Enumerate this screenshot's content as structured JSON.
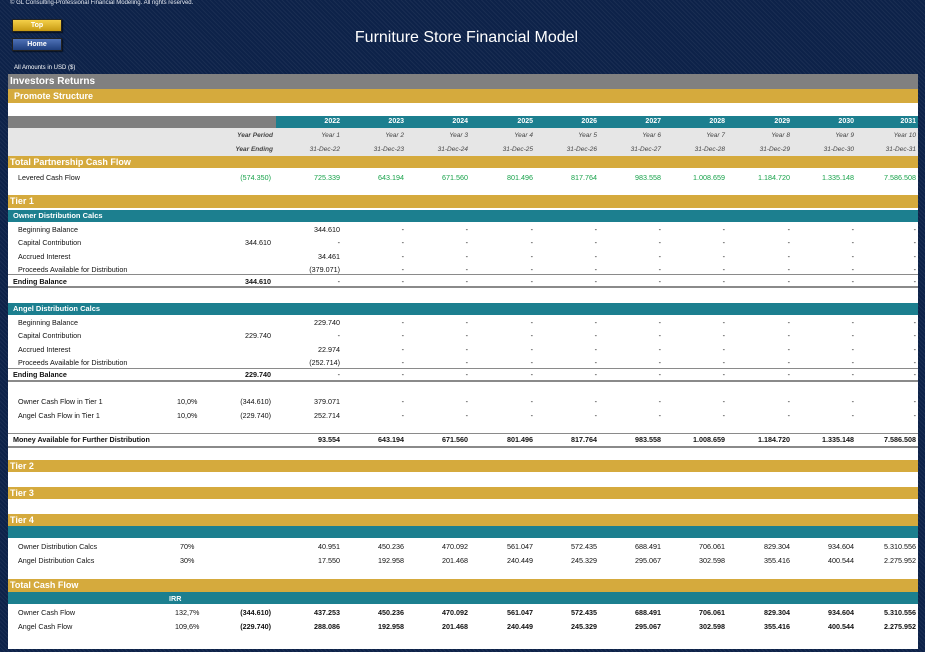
{
  "copyright": "© GL Consulting-Professional Financial Modeling. All rights reserved.",
  "nav": {
    "top": "Top",
    "home": "Home"
  },
  "title": "Furniture Store Financial Model",
  "amounts_label": "All Amounts in  USD ($)",
  "sections": {
    "investors_returns": "Investors Returns",
    "promote_structure": "Promote Structure",
    "total_partnership_cf": "Total Partnership Cash Flow",
    "tier1": "Tier 1",
    "owner_calcs": "Owner Distribution Calcs",
    "angel_calcs": "Angel Distribution Calcs",
    "tier2": "Tier 2",
    "tier3": "Tier 3",
    "tier4": "Tier 4",
    "total_cash_flow": "Total Cash Flow"
  },
  "header": {
    "years": [
      "2022",
      "2023",
      "2024",
      "2025",
      "2026",
      "2027",
      "2028",
      "2029",
      "2030",
      "2031"
    ],
    "year_period_label": "Year Period",
    "year_ending_label": "Year Ending",
    "periods": [
      "Year 1",
      "Year 2",
      "Year 3",
      "Year 4",
      "Year 5",
      "Year 6",
      "Year 7",
      "Year 8",
      "Year 9",
      "Year 10"
    ],
    "endings": [
      "31-Dec-22",
      "31-Dec-23",
      "31-Dec-24",
      "31-Dec-25",
      "31-Dec-26",
      "31-Dec-27",
      "31-Dec-28",
      "31-Dec-29",
      "31-Dec-30",
      "31-Dec-31"
    ]
  },
  "levered": {
    "label": "Levered Cash Flow",
    "initial": "(574.350)",
    "values": [
      "725.339",
      "643.194",
      "671.560",
      "801.496",
      "817.764",
      "983.558",
      "1.008.659",
      "1.184.720",
      "1.335.148",
      "7.586.508"
    ]
  },
  "owner": {
    "rows": [
      {
        "label": "Beginning Balance",
        "c2": "",
        "values": [
          "344.610",
          "-",
          "-",
          "-",
          "-",
          "-",
          "-",
          "-",
          "-",
          "-"
        ]
      },
      {
        "label": "Capital Contribution",
        "c2": "344.610",
        "values": [
          "-",
          "-",
          "-",
          "-",
          "-",
          "-",
          "-",
          "-",
          "-",
          "-"
        ]
      },
      {
        "label": "Accrued Interest",
        "c2": "",
        "values": [
          "34.461",
          "-",
          "-",
          "-",
          "-",
          "-",
          "-",
          "-",
          "-",
          "-"
        ]
      },
      {
        "label": "Proceeds Available for Distribution",
        "c2": "",
        "values": [
          "(379.071)",
          "-",
          "-",
          "-",
          "-",
          "-",
          "-",
          "-",
          "-",
          "-"
        ]
      }
    ],
    "ending": {
      "label": "Ending Balance",
      "c2": "344.610",
      "values": [
        "-",
        "-",
        "-",
        "-",
        "-",
        "-",
        "-",
        "-",
        "-",
        "-"
      ]
    }
  },
  "angel": {
    "rows": [
      {
        "label": "Beginning Balance",
        "c2": "",
        "values": [
          "229.740",
          "-",
          "-",
          "-",
          "-",
          "-",
          "-",
          "-",
          "-",
          "-"
        ]
      },
      {
        "label": "Capital Contribution",
        "c2": "229.740",
        "values": [
          "-",
          "-",
          "-",
          "-",
          "-",
          "-",
          "-",
          "-",
          "-",
          "-"
        ]
      },
      {
        "label": "Accrued Interest",
        "c2": "",
        "values": [
          "22.974",
          "-",
          "-",
          "-",
          "-",
          "-",
          "-",
          "-",
          "-",
          "-"
        ]
      },
      {
        "label": "Proceeds Available for Distribution",
        "c2": "",
        "values": [
          "(252.714)",
          "-",
          "-",
          "-",
          "-",
          "-",
          "-",
          "-",
          "-",
          "-"
        ]
      }
    ],
    "ending": {
      "label": "Ending Balance",
      "c2": "229.740",
      "values": [
        "-",
        "-",
        "-",
        "-",
        "-",
        "-",
        "-",
        "-",
        "-",
        "-"
      ]
    }
  },
  "tier1_cf": [
    {
      "label": "Owner Cash Flow in Tier 1",
      "pct": "10,0%",
      "c2": "(344.610)",
      "values": [
        "379.071",
        "-",
        "-",
        "-",
        "-",
        "-",
        "-",
        "-",
        "-",
        "-"
      ]
    },
    {
      "label": "Angel Cash Flow in Tier 1",
      "pct": "10,0%",
      "c2": "(229.740)",
      "values": [
        "252.714",
        "-",
        "-",
        "-",
        "-",
        "-",
        "-",
        "-",
        "-",
        "-"
      ]
    }
  ],
  "money_available": {
    "label": "Money Available for Further Distribution",
    "values": [
      "93.554",
      "643.194",
      "671.560",
      "801.496",
      "817.764",
      "983.558",
      "1.008.659",
      "1.184.720",
      "1.335.148",
      "7.586.508"
    ]
  },
  "tier4_rows": [
    {
      "label": "Owner Distribution Calcs",
      "pct": "70%",
      "values": [
        "40.951",
        "450.236",
        "470.092",
        "561.047",
        "572.435",
        "688.491",
        "706.061",
        "829.304",
        "934.604",
        "5.310.556"
      ]
    },
    {
      "label": "Angel Distribution Calcs",
      "pct": "30%",
      "values": [
        "17.550",
        "192.958",
        "201.468",
        "240.449",
        "245.329",
        "295.067",
        "302.598",
        "355.416",
        "400.544",
        "2.275.952"
      ]
    }
  ],
  "irr_label": "IRR",
  "total_cf_rows": [
    {
      "label": "Owner Cash Flow",
      "irr": "132,7%",
      "c2": "(344.610)",
      "values": [
        "437.253",
        "450.236",
        "470.092",
        "561.047",
        "572.435",
        "688.491",
        "706.061",
        "829.304",
        "934.604",
        "5.310.556"
      ]
    },
    {
      "label": "Angel Cash Flow",
      "irr": "109,6%",
      "c2": "(229.740)",
      "values": [
        "288.086",
        "192.958",
        "201.468",
        "240.449",
        "245.329",
        "295.067",
        "302.598",
        "355.416",
        "400.544",
        "2.275.952"
      ]
    }
  ]
}
